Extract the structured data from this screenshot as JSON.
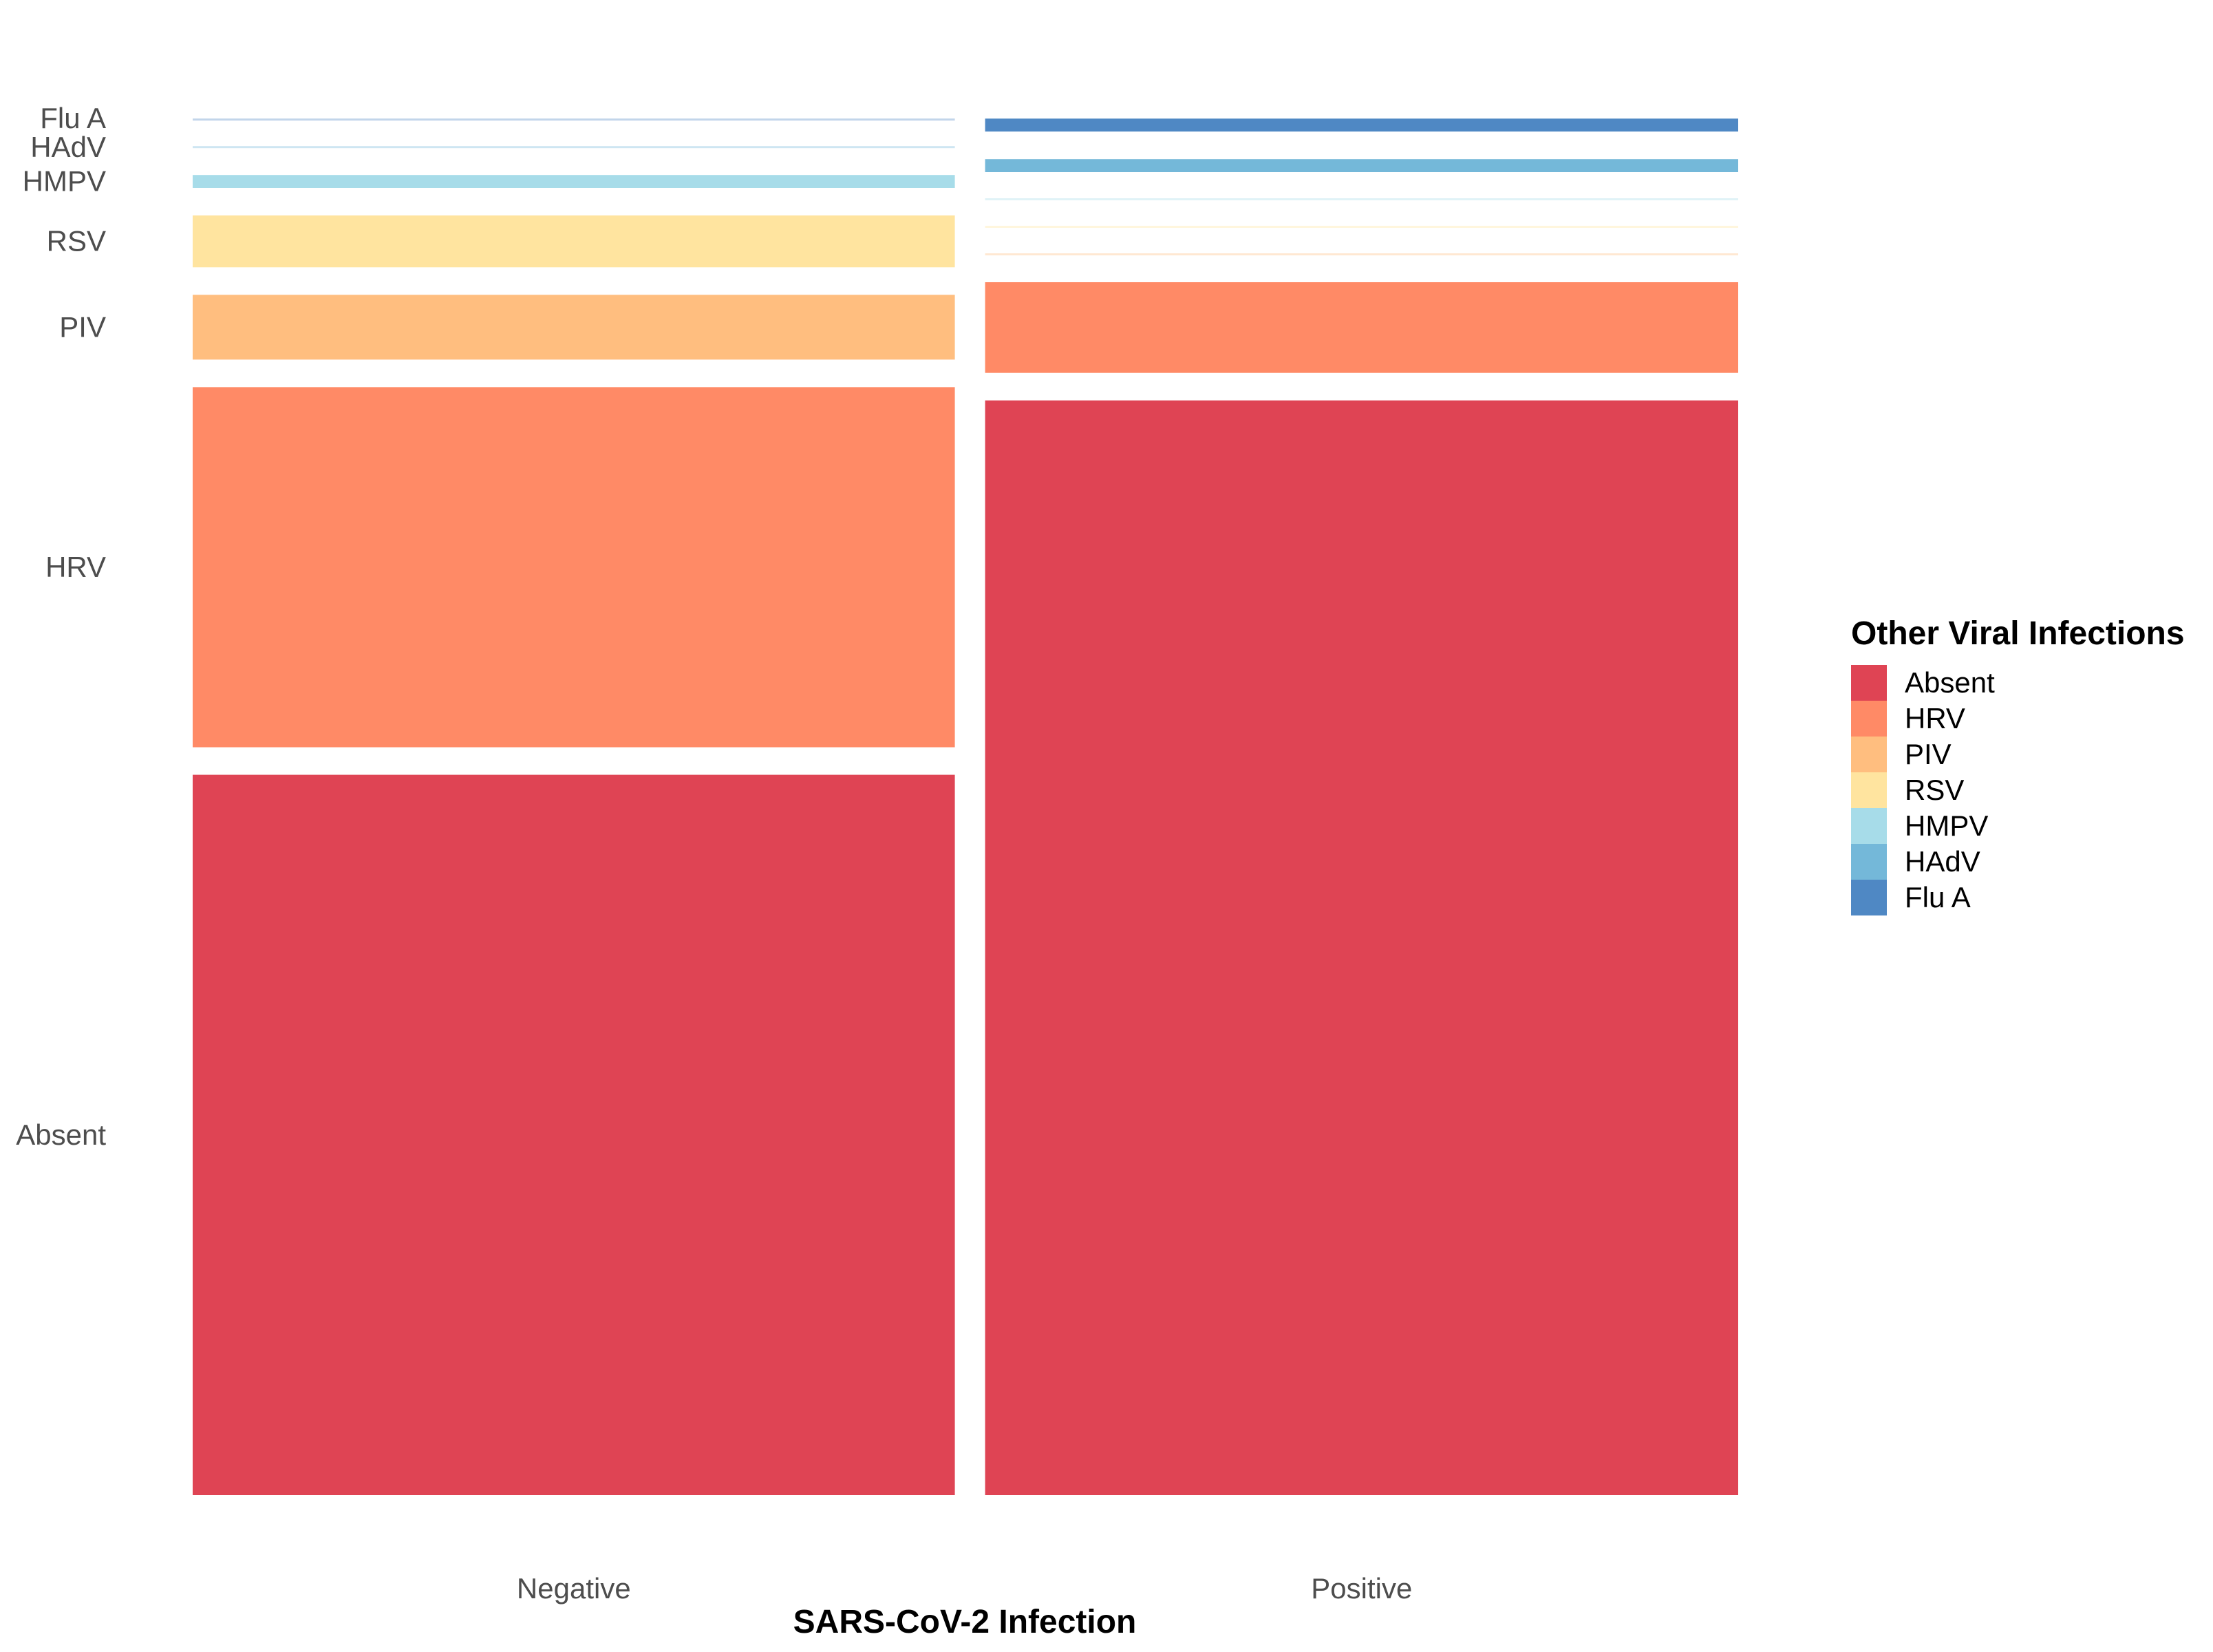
{
  "chart_data": {
    "type": "mosaic",
    "xlabel": "SARS-CoV-2 Infection",
    "ylabel": "",
    "legend_title": "Other Viral Infections",
    "legend_position": "right",
    "grid": false,
    "x_categories": [
      {
        "label": "Negative",
        "width_fraction": 0.503
      },
      {
        "label": "Positive",
        "width_fraction": 0.497
      }
    ],
    "y_categories": [
      "Absent",
      "HRV",
      "PIV",
      "RSV",
      "HMPV",
      "HAdV",
      "Flu A"
    ],
    "series": [
      {
        "name": "Absent",
        "color": "#DF4454",
        "values": [
          0.556,
          0.845
        ]
      },
      {
        "name": "HRV",
        "color": "#FF8A66",
        "values": [
          0.278,
          0.07
        ]
      },
      {
        "name": "PIV",
        "color": "#FFBE7F",
        "values": [
          0.05,
          0.0
        ]
      },
      {
        "name": "RSV",
        "color": "#FFE49F",
        "values": [
          0.04,
          0.0
        ]
      },
      {
        "name": "HMPV",
        "color": "#A7DCE9",
        "values": [
          0.01,
          0.0
        ]
      },
      {
        "name": "HAdV",
        "color": "#74B8D9",
        "values": [
          0.0,
          0.01
        ]
      },
      {
        "name": "Flu A",
        "color": "#4F88C4",
        "values": [
          0.0,
          0.01
        ]
      }
    ],
    "y_tick_labels": [
      "Absent",
      "HRV",
      "PIV",
      "RSV",
      "HMPV",
      "HAdV",
      "Flu A"
    ],
    "x_tick_labels": [
      "Negative",
      "Positive"
    ]
  }
}
